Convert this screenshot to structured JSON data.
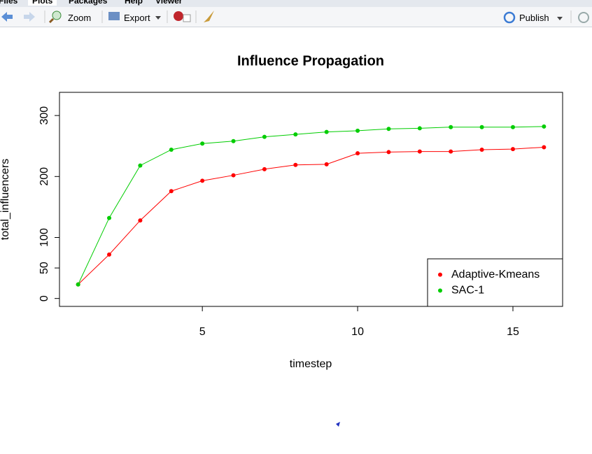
{
  "tabs": [
    "Files",
    "Plots",
    "Packages",
    "Help",
    "Viewer"
  ],
  "toolbar": {
    "zoom": "Zoom",
    "export": "Export",
    "publish": "Publish"
  },
  "chart_data": {
    "type": "line",
    "title": "Influence Propagation",
    "x_label": "timestep",
    "y_label": "total_influencers",
    "x": [
      1,
      2,
      3,
      4,
      5,
      6,
      7,
      8,
      9,
      10,
      11,
      12,
      13,
      14,
      15,
      16
    ],
    "series": [
      {
        "name": "Adaptive-Kmeans",
        "color": "#ff0000",
        "values": [
          23,
          72,
          128,
          176,
          193,
          202,
          212,
          219,
          220,
          238,
          240,
          241,
          241,
          244,
          245,
          248
        ]
      },
      {
        "name": "SAC-1",
        "color": "#00cd00",
        "values": [
          23,
          132,
          218,
          244,
          254,
          258,
          265,
          269,
          273,
          275,
          278,
          279,
          281,
          281,
          281,
          282
        ]
      }
    ],
    "xlim": [
      0.4,
      16.6
    ],
    "ylim": [
      -13,
      338
    ],
    "xticks": [
      5,
      10,
      15
    ],
    "yticks": [
      0,
      50,
      100,
      200,
      300
    ],
    "legend": "bottomright"
  }
}
